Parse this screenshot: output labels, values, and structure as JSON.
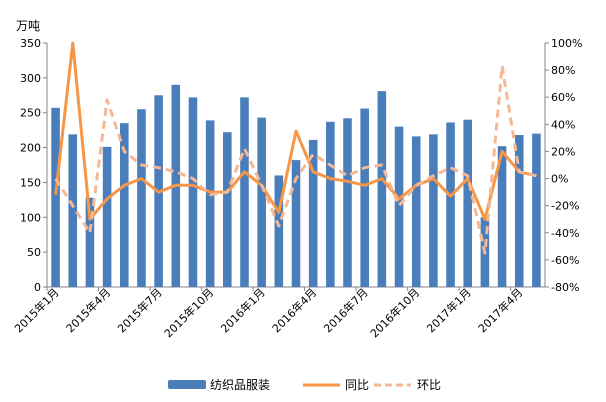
{
  "chart_data": {
    "type": "bar",
    "unit_label": "万吨",
    "x": [
      "2015年1月",
      "2015年2月",
      "2015年3月",
      "2015年4月",
      "2015年5月",
      "2015年6月",
      "2015年7月",
      "2015年8月",
      "2015年9月",
      "2015年10月",
      "2015年11月",
      "2015年12月",
      "2016年1月",
      "2016年2月",
      "2016年3月",
      "2016年4月",
      "2016年5月",
      "2016年6月",
      "2016年7月",
      "2016年8月",
      "2016年9月",
      "2016年10月",
      "2016年11月",
      "2016年12月",
      "2017年1月",
      "2017年2月",
      "2017年3月",
      "2017年4月",
      "2017年5月"
    ],
    "x_tick_labels": [
      {
        "index": 0,
        "label": "2015年1月"
      },
      {
        "index": 3,
        "label": "2015年4月"
      },
      {
        "index": 6,
        "label": "2015年7月"
      },
      {
        "index": 9,
        "label": "2015年10月"
      },
      {
        "index": 12,
        "label": "2016年1月"
      },
      {
        "index": 15,
        "label": "2016年4月"
      },
      {
        "index": 18,
        "label": "2016年7月"
      },
      {
        "index": 21,
        "label": "2016年10月"
      },
      {
        "index": 24,
        "label": "2017年1月"
      },
      {
        "index": 27,
        "label": "2017年4月"
      }
    ],
    "y_left": {
      "min": 0,
      "max": 350,
      "ticks": [
        "0",
        "50",
        "100",
        "150",
        "200",
        "250",
        "300",
        "350"
      ]
    },
    "y_right": {
      "min": -80,
      "max": 100,
      "ticks": [
        "-80%",
        "-60%",
        "-40%",
        "-20%",
        "0%",
        "20%",
        "40%",
        "60%",
        "80%",
        "100%"
      ]
    },
    "series": [
      {
        "name": "纺织品服装",
        "kind": "bar",
        "axis": "left",
        "color": "#4a7ebb",
        "values": [
          257,
          219,
          128,
          201,
          235,
          255,
          275,
          290,
          272,
          239,
          222,
          272,
          243,
          160,
          182,
          211,
          237,
          242,
          256,
          281,
          230,
          216,
          219,
          236,
          240,
          100,
          202,
          218,
          220
        ]
      },
      {
        "name": "同比",
        "kind": "line",
        "axis": "right",
        "color": "#f79646",
        "values": [
          -12,
          100,
          -30,
          -15,
          -5,
          0,
          -10,
          -5,
          -5,
          -10,
          -10,
          5,
          -5,
          -25,
          35,
          5,
          0,
          -2,
          -5,
          0,
          -15,
          -5,
          0,
          -13,
          0,
          -30,
          20,
          5,
          2
        ]
      },
      {
        "name": "环比",
        "kind": "dashed-line",
        "axis": "right",
        "color": "#f5b895",
        "values": [
          0,
          -20,
          -40,
          58,
          20,
          10,
          8,
          5,
          0,
          -12,
          -10,
          22,
          -5,
          -35,
          0,
          18,
          10,
          2,
          8,
          10,
          -20,
          -5,
          2,
          8,
          2,
          -55,
          83,
          5,
          2
        ]
      }
    ],
    "legend_position": "bottom",
    "grid": false
  }
}
